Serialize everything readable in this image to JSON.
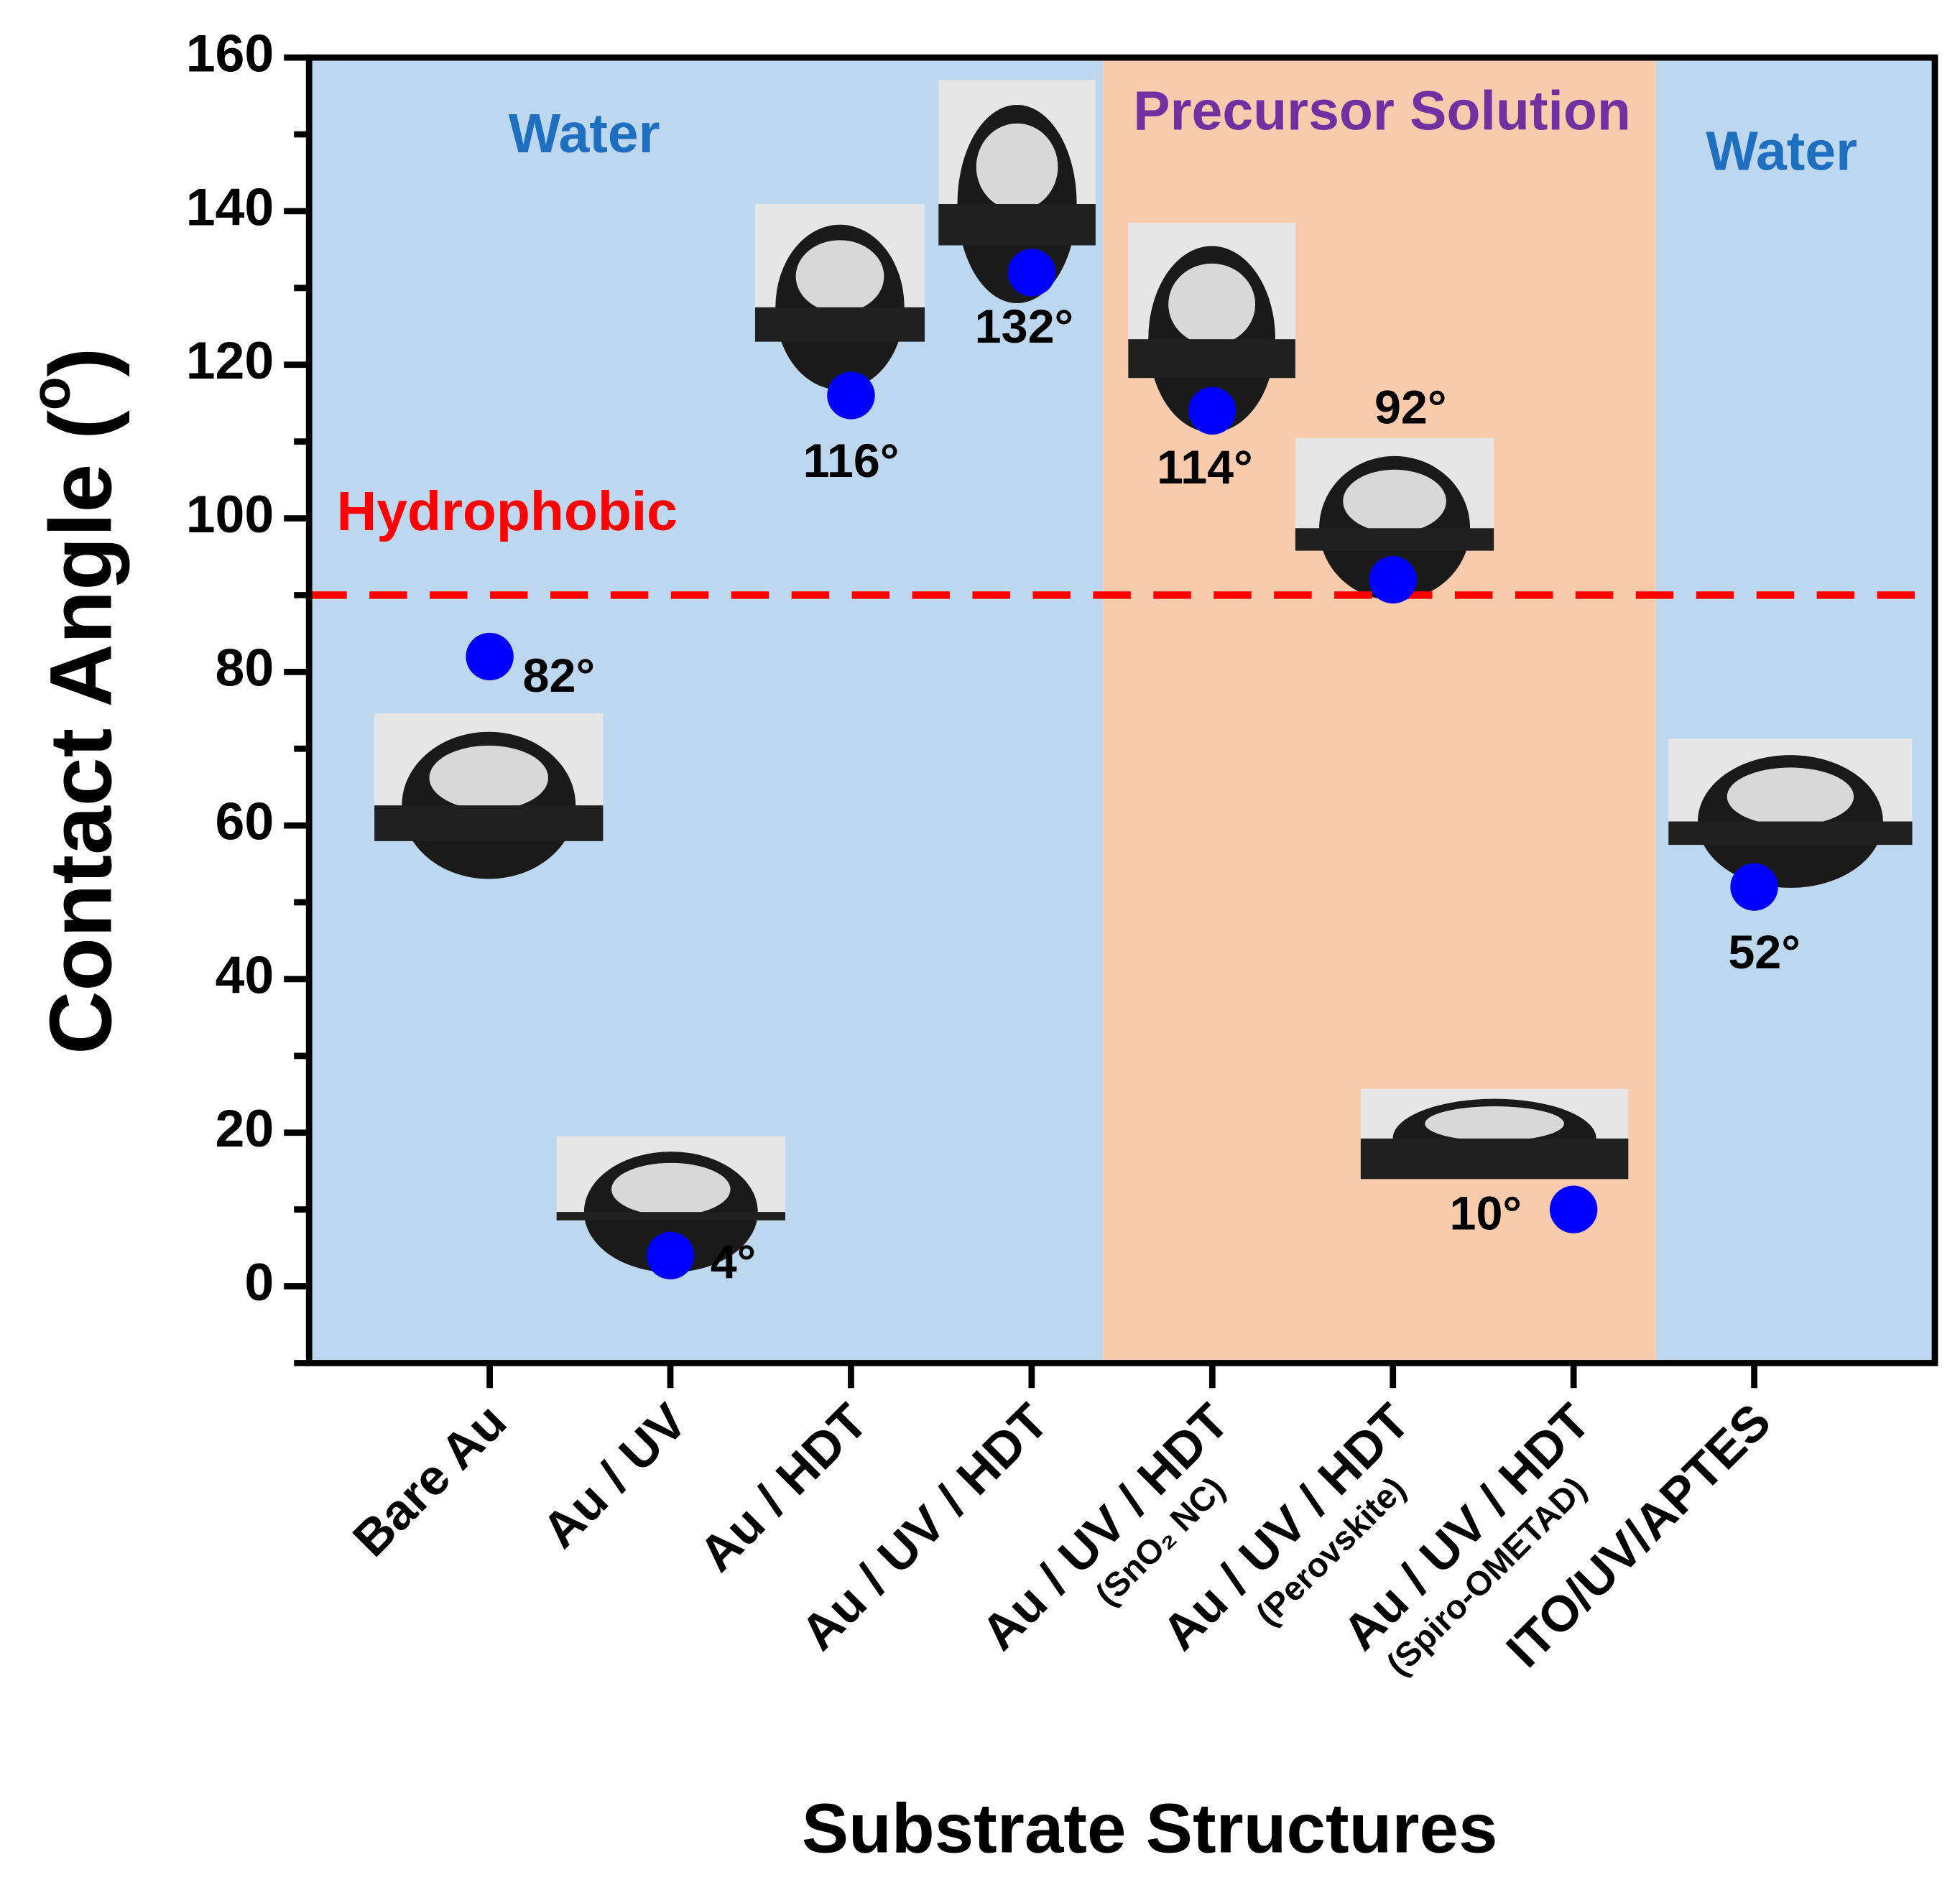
{
  "chart_data": {
    "type": "scatter",
    "y_label_parts": [
      "Contact Angle (",
      "o",
      ")"
    ],
    "x_label": "Substrate Structures",
    "categories": [
      "Bare Au",
      "Au / UV",
      "Au / HDT",
      "Au / UV / HDT",
      "Au / UV / HDT",
      "Au / UV / HDT",
      "Au / UV / HDT",
      "ITO/UV/APTES"
    ],
    "category_sublabels": [
      null,
      null,
      null,
      null,
      "(SnO₂ NC)",
      "(Perovskite)",
      "(Spiro-OMETAD)",
      null
    ],
    "values": [
      82,
      4,
      116,
      132,
      114,
      92,
      10,
      52
    ],
    "value_labels": [
      "82°",
      "4°",
      "116°",
      "132°",
      "114°",
      "92°",
      "10°",
      "52°"
    ],
    "color": "#0000ff",
    "ylim": [
      -10,
      160
    ],
    "yticks": [
      0,
      20,
      40,
      60,
      80,
      100,
      120,
      140,
      160
    ],
    "minor_yticks": [
      -10,
      10,
      30,
      50,
      70,
      90,
      110,
      130,
      150
    ],
    "threshold": 90,
    "threshold_label": "Hydrophobic",
    "threshold_color": "#ff0000",
    "regions": [
      {
        "label": "Water",
        "color": "#bdd7ee",
        "label_color": "#1f6fc0"
      },
      {
        "label": "Precursor Solution",
        "color": "#f8cbad",
        "label_color": "#7030a0"
      },
      {
        "label": "Water",
        "color": "#bdd7ee",
        "label_color": "#1f6fc0"
      }
    ]
  }
}
